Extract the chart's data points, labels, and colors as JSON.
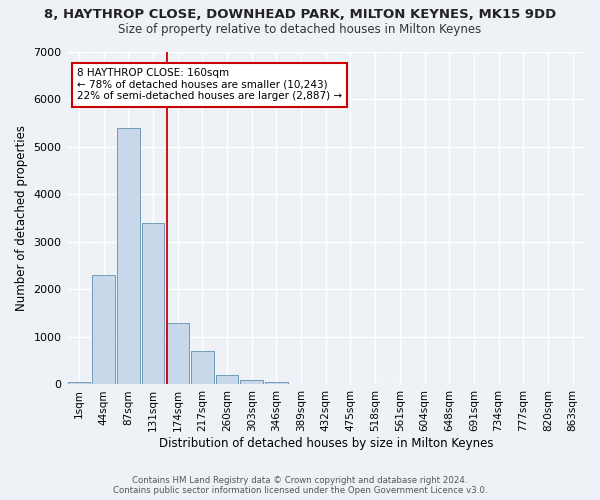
{
  "title1": "8, HAYTHROP CLOSE, DOWNHEAD PARK, MILTON KEYNES, MK15 9DD",
  "title2": "Size of property relative to detached houses in Milton Keynes",
  "xlabel": "Distribution of detached houses by size in Milton Keynes",
  "ylabel": "Number of detached properties",
  "bin_labels": [
    "1sqm",
    "44sqm",
    "87sqm",
    "131sqm",
    "174sqm",
    "217sqm",
    "260sqm",
    "303sqm",
    "346sqm",
    "389sqm",
    "432sqm",
    "475sqm",
    "518sqm",
    "561sqm",
    "604sqm",
    "648sqm",
    "691sqm",
    "734sqm",
    "777sqm",
    "820sqm",
    "863sqm"
  ],
  "bar_values": [
    50,
    2300,
    5400,
    3400,
    1300,
    700,
    200,
    100,
    60,
    10,
    0,
    0,
    0,
    0,
    0,
    0,
    0,
    0,
    0,
    0,
    0
  ],
  "bar_color": "#c8d8ea",
  "bar_edge_color": "#6090b0",
  "red_line_x": 3.55,
  "annotation_text": "8 HAYTHROP CLOSE: 160sqm\n← 78% of detached houses are smaller (10,243)\n22% of semi-detached houses are larger (2,887) →",
  "annotation_box_color": "#ffffff",
  "annotation_box_edge": "#cc0000",
  "ylim": [
    0,
    7000
  ],
  "yticks": [
    0,
    1000,
    2000,
    3000,
    4000,
    5000,
    6000,
    7000
  ],
  "footer1": "Contains HM Land Registry data © Crown copyright and database right 2024.",
  "footer2": "Contains public sector information licensed under the Open Government Licence v3.0.",
  "bg_color": "#eef2f7",
  "plot_bg_color": "#eef2f7",
  "grid_color": "#ffffff",
  "title1_fontsize": 9.5,
  "title2_fontsize": 8.5,
  "xlabel_fontsize": 8.5,
  "ylabel_fontsize": 8.5,
  "annot_fontsize": 7.5,
  "tick_fontsize": 7.5,
  "ytick_fontsize": 8
}
